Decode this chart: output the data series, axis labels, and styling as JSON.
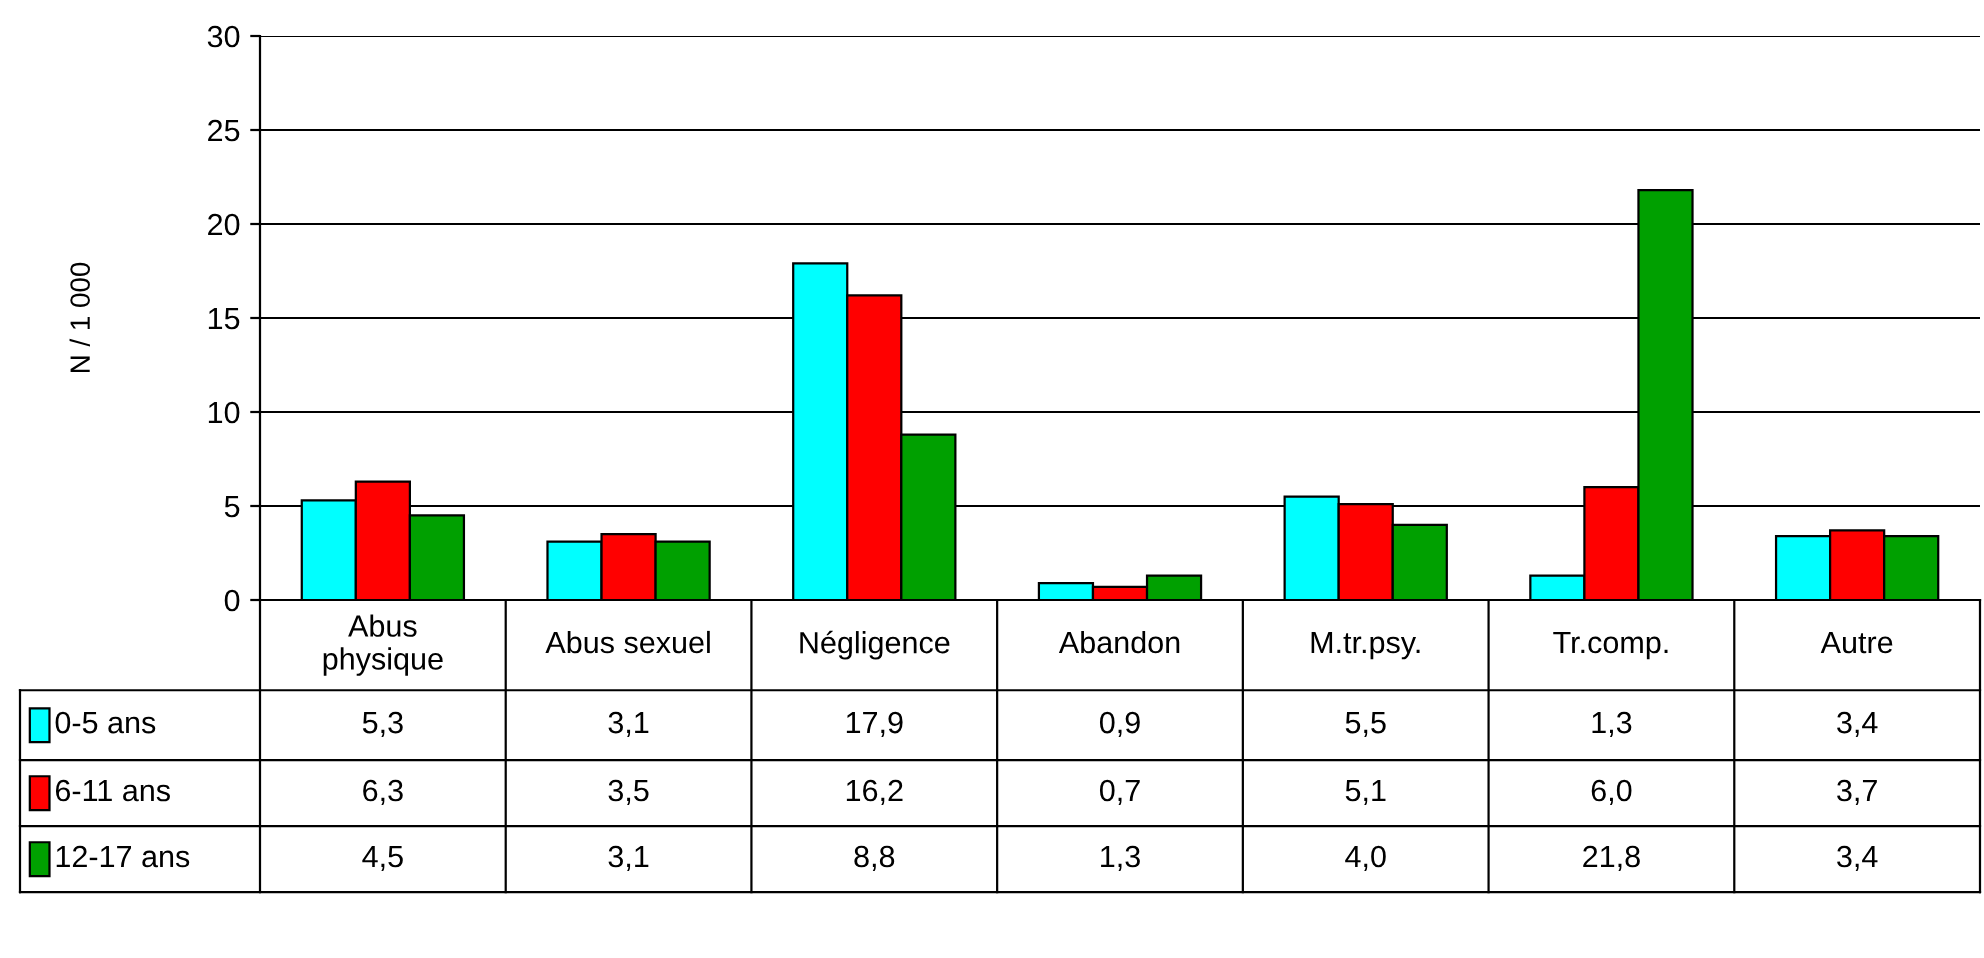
{
  "chart_data": {
    "type": "bar",
    "ylabel": "N / 1 000",
    "categories": [
      "Abus\nphysique",
      "Abus sexuel",
      "Négligence",
      "Abandon",
      "M.tr.psy.",
      "Tr.comp.",
      "Autre"
    ],
    "series": [
      {
        "name": "0-5 ans",
        "color": "#00ffff",
        "values": [
          5.3,
          3.1,
          17.9,
          0.9,
          5.5,
          1.3,
          3.4
        ],
        "value_labels": [
          "5,3",
          "3,1",
          "17,9",
          "0,9",
          "5,5",
          "1,3",
          "3,4"
        ]
      },
      {
        "name": "6-11 ans",
        "color": "#ff0000",
        "values": [
          6.3,
          3.5,
          16.2,
          0.7,
          5.1,
          6.0,
          3.7
        ],
        "value_labels": [
          "6,3",
          "3,5",
          "16,2",
          "0,7",
          "5,1",
          "6,0",
          "3,7"
        ]
      },
      {
        "name": "12-17 ans",
        "color": "#00a000",
        "values": [
          4.5,
          3.1,
          8.8,
          1.3,
          4.0,
          21.8,
          3.4
        ],
        "value_labels": [
          "4,5",
          "3,1",
          "8,8",
          "1,3",
          "4,0",
          "21,8",
          "3,4"
        ]
      }
    ],
    "legend": "bottom left",
    "ylim": [
      0,
      30
    ],
    "yticks": [
      0,
      5,
      10,
      15,
      20,
      25,
      30
    ],
    "grid": "y"
  }
}
